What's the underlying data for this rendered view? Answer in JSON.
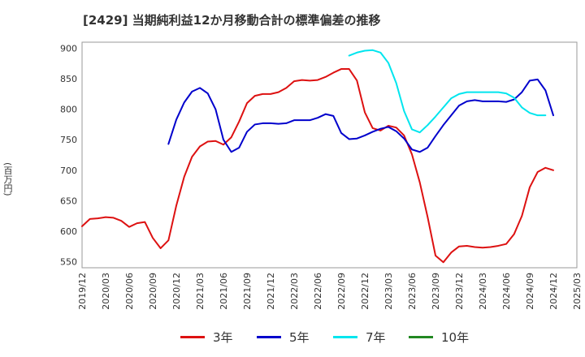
{
  "chart_data": {
    "type": "line",
    "title": "[2429]  当期純利益12か月移動合計の標準偏差の推移",
    "ylabel": "(百万円)",
    "xlabel": "",
    "ylim": [
      540,
      910
    ],
    "yticks": [
      550,
      600,
      650,
      700,
      750,
      800,
      850,
      900
    ],
    "xlim": [
      "2019-12",
      "2025-03"
    ],
    "xticks": [
      "2019/12",
      "2020/03",
      "2020/06",
      "2020/09",
      "2020/12",
      "2021/03",
      "2021/06",
      "2021/09",
      "2021/12",
      "2022/03",
      "2022/06",
      "2022/09",
      "2022/12",
      "2023/03",
      "2023/06",
      "2023/09",
      "2023/12",
      "2024/03",
      "2024/06",
      "2024/09",
      "2024/12",
      "2025/03"
    ],
    "grid": true,
    "legend_position": "bottom",
    "series": [
      {
        "name": "3年",
        "color": "#dd1111",
        "start": "2019-12",
        "values": [
          608,
          620,
          621,
          623,
          622,
          617,
          607,
          613,
          615,
          589,
          572,
          585,
          642,
          689,
          722,
          739,
          747,
          748,
          742,
          754,
          780,
          810,
          822,
          825,
          825,
          828,
          835,
          846,
          848,
          847,
          848,
          853,
          860,
          866,
          866,
          847,
          795,
          769,
          765,
          773,
          770,
          757,
          726,
          680,
          623,
          560,
          549,
          565,
          575,
          576,
          574,
          573,
          574,
          576,
          579,
          595,
          625,
          672,
          697,
          704,
          700
        ]
      },
      {
        "name": "5年",
        "color": "#0000cc",
        "start": "2020-11",
        "values": [
          743,
          783,
          811,
          829,
          835,
          826,
          800,
          750,
          730,
          737,
          763,
          775,
          777,
          777,
          776,
          777,
          782,
          782,
          782,
          786,
          792,
          789,
          761,
          751,
          752,
          757,
          763,
          768,
          771,
          764,
          752,
          734,
          730,
          737,
          756,
          774,
          790,
          806,
          813,
          815,
          813,
          813,
          813,
          812,
          816,
          828,
          847,
          849,
          831,
          790
        ]
      },
      {
        "name": "7年",
        "color": "#00e5ee",
        "start": "2022-10",
        "values": [
          888,
          893,
          896,
          897,
          893,
          876,
          843,
          797,
          767,
          762,
          774,
          788,
          803,
          818,
          825,
          828,
          828,
          828,
          828,
          828,
          826,
          819,
          803,
          794,
          790,
          790
        ]
      },
      {
        "name": "10年",
        "color": "#228822",
        "start": "2019-12",
        "values": []
      }
    ]
  }
}
